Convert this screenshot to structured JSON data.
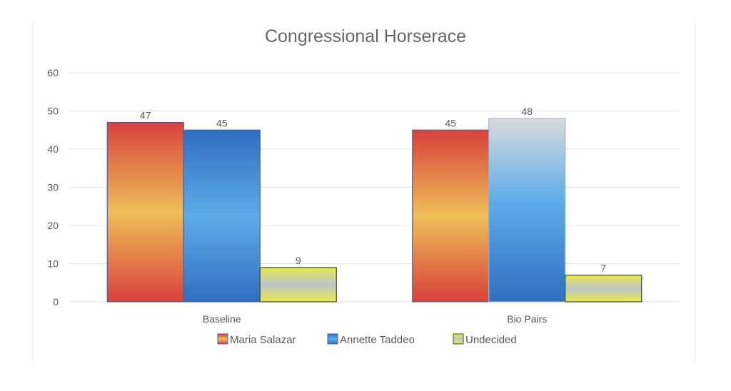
{
  "chart_data": {
    "type": "bar",
    "title": "Congressional Horserace",
    "categories": [
      "Baseline",
      "Bio Pairs"
    ],
    "series": [
      {
        "name": "Maria Salazar",
        "values": [
          47,
          45
        ],
        "color": "#d9453a"
      },
      {
        "name": "Annette Taddeo",
        "values": [
          45,
          48
        ],
        "color": "#3f8fd8"
      },
      {
        "name": "Undecided",
        "values": [
          9,
          7
        ],
        "color": "#e6e24a"
      }
    ],
    "ylim": [
      0,
      60
    ],
    "yticks": [
      0,
      10,
      20,
      30,
      40,
      50,
      60
    ],
    "grid": true,
    "legend": "bottom",
    "data_labels": true
  }
}
